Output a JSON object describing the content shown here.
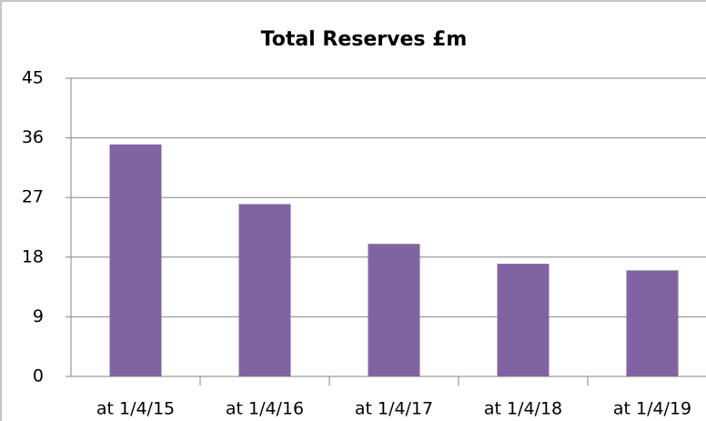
{
  "chart_data": {
    "type": "bar",
    "title": "Total Reserves £m",
    "categories": [
      "at 1/4/15",
      "at 1/4/16",
      "at 1/4/17",
      "at 1/4/18",
      "at 1/4/19"
    ],
    "values": [
      35,
      26,
      20,
      17,
      16
    ],
    "color": "#8064a2",
    "ylim": [
      0,
      45
    ],
    "yticks": [
      0,
      9,
      18,
      27,
      36,
      45
    ],
    "grid": true
  }
}
